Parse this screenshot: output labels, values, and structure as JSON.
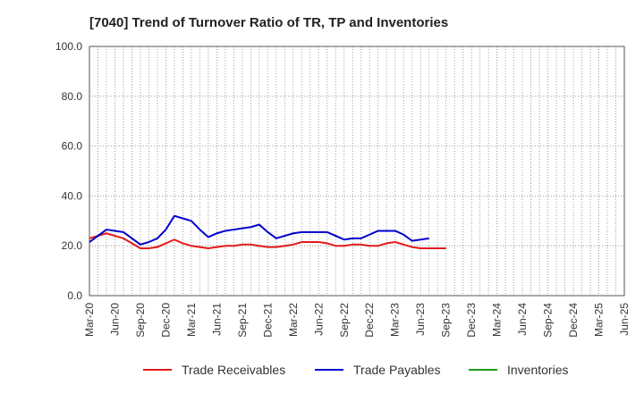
{
  "chart_data": {
    "type": "line",
    "title": "[7040]  Trend of Turnover Ratio of TR, TP and Inventories",
    "xlabel": "",
    "ylabel": "",
    "ylim": [
      0,
      100
    ],
    "y_ticks": [
      "0.0",
      "20.0",
      "40.0",
      "60.0",
      "80.0",
      "100.0"
    ],
    "y_tick_values": [
      0,
      20,
      40,
      60,
      80,
      100
    ],
    "x_tick_labels": [
      "Mar-20",
      "Jun-20",
      "Sep-20",
      "Dec-20",
      "Mar-21",
      "Jun-21",
      "Sep-21",
      "Dec-21",
      "Mar-22",
      "Jun-22",
      "Sep-22",
      "Dec-22",
      "Mar-23",
      "Jun-23",
      "Sep-23",
      "Dec-23",
      "Mar-24",
      "Jun-24",
      "Sep-24",
      "Dec-24",
      "Mar-25",
      "Jun-25"
    ],
    "x_minor_per_major": 3,
    "grid": true,
    "legend_position": "bottom",
    "series": [
      {
        "name": "Trade Receivables",
        "color": "#e31a1c",
        "values": [
          23.0,
          24.0,
          25.0,
          24.0,
          23.0,
          21.0,
          19.0,
          19.0,
          19.5,
          21.0,
          22.5,
          21.0,
          20.0,
          19.5,
          19.0,
          19.5,
          20.0,
          20.0,
          20.5,
          20.5,
          20.0,
          19.5,
          19.5,
          20.0,
          20.5,
          21.5,
          21.5,
          21.5,
          21.0,
          20.0,
          20.0,
          20.5,
          20.5,
          20.0,
          20.0,
          21.0,
          21.5,
          20.5,
          19.5,
          19.0,
          19.0,
          19.0,
          19.0
        ]
      },
      {
        "name": "Trade Payables",
        "color": "#0000cc",
        "values": [
          21.5,
          24.0,
          26.5,
          26.0,
          25.5,
          23.0,
          20.5,
          21.5,
          23.0,
          26.5,
          32.0,
          31.0,
          30.0,
          26.5,
          23.5,
          25.0,
          26.0,
          26.5,
          27.0,
          27.5,
          28.5,
          25.5,
          23.0,
          24.0,
          25.0,
          25.5,
          25.5,
          25.5,
          25.5,
          24.0,
          22.5,
          23.0,
          23.0,
          24.5,
          26.0,
          26.0,
          26.0,
          24.5,
          22.0,
          22.5,
          23.0
        ]
      },
      {
        "name": "Inventories",
        "color": "#1a9a1a",
        "values": []
      }
    ]
  }
}
